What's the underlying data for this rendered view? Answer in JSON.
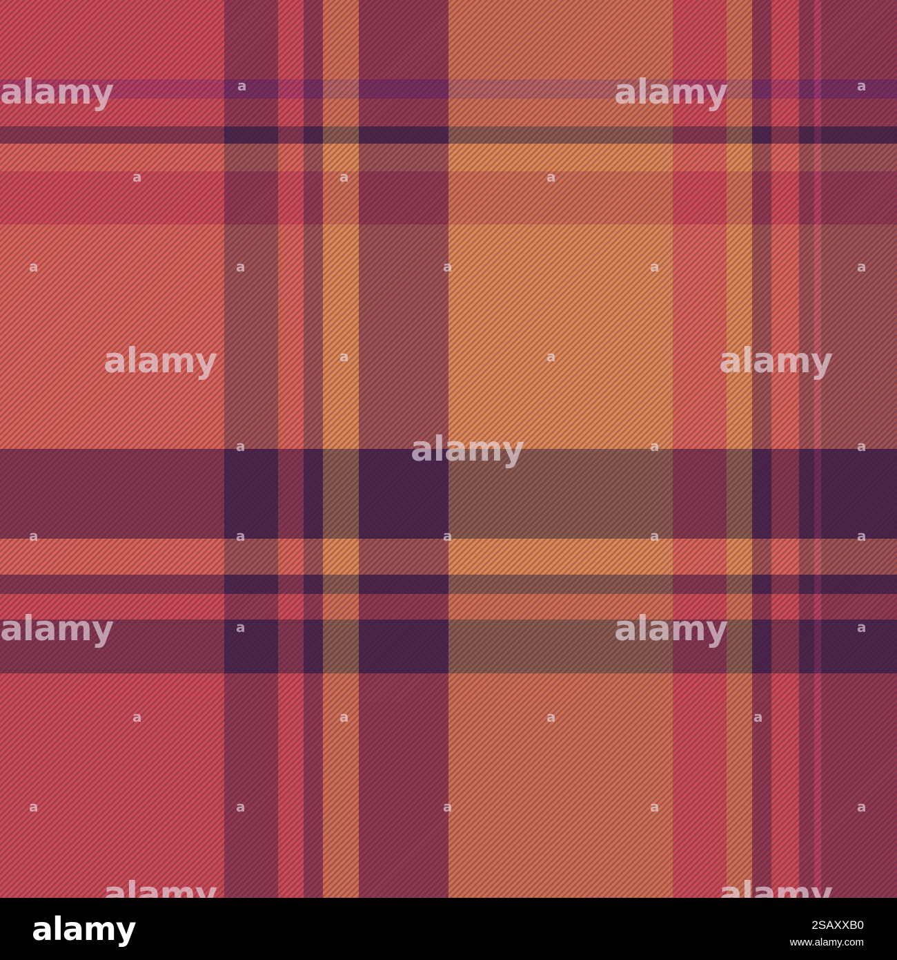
{
  "watermark": {
    "brand_text": "alamy",
    "small_mark": "a"
  },
  "footer": {
    "brand": "alamy",
    "image_code": "2SAXXB0",
    "url": "www.alamy.com"
  },
  "colors": {
    "red": "#cb4a54",
    "orange": "#e37858",
    "gold": "#d59a52",
    "plum": "#4a2549",
    "magenta": "#9a3670",
    "brown": "#8b5a4a",
    "footer_bg": "#000000"
  }
}
